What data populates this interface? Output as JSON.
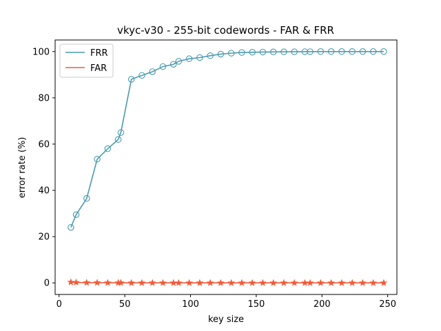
{
  "chart_data": {
    "type": "line",
    "title": "vkyc-v30 - 255-bit codewords - FAR & FRR",
    "xlabel": "key size",
    "ylabel": "error rate (%)",
    "xlim": [
      -3,
      257
    ],
    "ylim": [
      -5,
      105
    ],
    "xticks": [
      0,
      50,
      100,
      150,
      200,
      250
    ],
    "yticks": [
      0,
      20,
      40,
      60,
      80,
      100
    ],
    "grid": false,
    "legend_position": "top-left",
    "x": [
      9,
      13,
      21,
      29,
      37,
      45,
      47,
      55,
      63,
      71,
      79,
      87,
      91,
      99,
      107,
      115,
      123,
      131,
      139,
      147,
      155,
      163,
      171,
      179,
      187,
      191,
      199,
      207,
      215,
      223,
      231,
      239,
      247
    ],
    "series": [
      {
        "name": "FRR",
        "color": "#4a9aae",
        "marker": "circle",
        "values": [
          24,
          29.5,
          36.5,
          53.5,
          58,
          62,
          65,
          88,
          89.7,
          91.3,
          93.5,
          94.5,
          95.8,
          96.9,
          97.4,
          98.2,
          98.9,
          99.3,
          99.6,
          99.7,
          99.8,
          99.85,
          99.9,
          99.9,
          99.95,
          99.95,
          100,
          100,
          100,
          100,
          100,
          100,
          100
        ]
      },
      {
        "name": "FAR",
        "color": "#f15a38",
        "marker": "star",
        "values": [
          0.3,
          0.2,
          0.1,
          0.1,
          0.05,
          0.05,
          0.05,
          0,
          0,
          0,
          0,
          0,
          0,
          0,
          0,
          0,
          0,
          0,
          0,
          0,
          0,
          0,
          0,
          0,
          0,
          0,
          0,
          0,
          0,
          0,
          0,
          0,
          0
        ]
      }
    ]
  }
}
